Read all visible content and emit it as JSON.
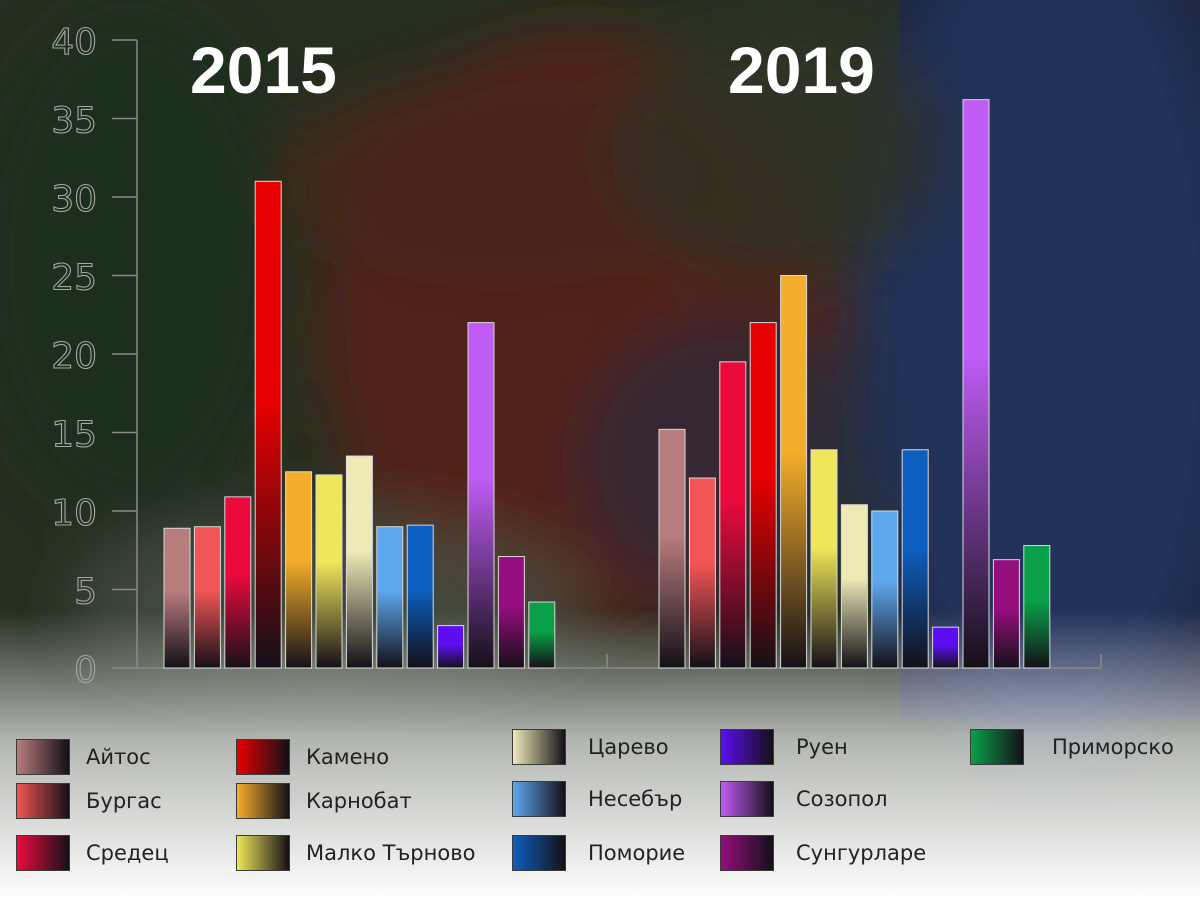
{
  "chart_data": {
    "type": "bar",
    "groups": [
      "2015",
      "2019"
    ],
    "ylim": [
      0,
      40
    ],
    "yticks": [
      0,
      5,
      10,
      15,
      20,
      25,
      30,
      35,
      40
    ],
    "title": "",
    "xlabel": "",
    "ylabel": "",
    "legend_position": "bottom",
    "series": [
      {
        "name": "Айтос",
        "color": "#b77c7c",
        "values": [
          8.9,
          15.2
        ]
      },
      {
        "name": "Бургас",
        "color": "#f25555",
        "values": [
          9.0,
          12.1
        ]
      },
      {
        "name": "Средец",
        "color": "#ec0a3d",
        "values": [
          10.9,
          19.5
        ]
      },
      {
        "name": "Камено",
        "color": "#e60000",
        "values": [
          31.0,
          22.0
        ]
      },
      {
        "name": "Карнобат",
        "color": "#f5ae2b",
        "values": [
          12.5,
          25.0
        ]
      },
      {
        "name": "Малко Търново",
        "color": "#f0e65a",
        "values": [
          12.3,
          13.9
        ]
      },
      {
        "name": "Царево",
        "color": "#eeeab8",
        "values": [
          13.5,
          10.4
        ]
      },
      {
        "name": "Несебър",
        "color": "#5ea8ee",
        "values": [
          9.0,
          10.0
        ]
      },
      {
        "name": "Поморие",
        "color": "#0c5fbf",
        "values": [
          9.1,
          13.9
        ]
      },
      {
        "name": "Руен",
        "color": "#5c0ef0",
        "values": [
          2.7,
          2.6
        ]
      },
      {
        "name": "Созопол",
        "color": "#c05cf5",
        "values": [
          22.0,
          36.2
        ]
      },
      {
        "name": "Сунгурларе",
        "color": "#950e7e",
        "values": [
          7.1,
          6.9
        ]
      },
      {
        "name": "Приморско",
        "color": "#0aa049",
        "values": [
          4.2,
          7.8
        ]
      }
    ]
  }
}
